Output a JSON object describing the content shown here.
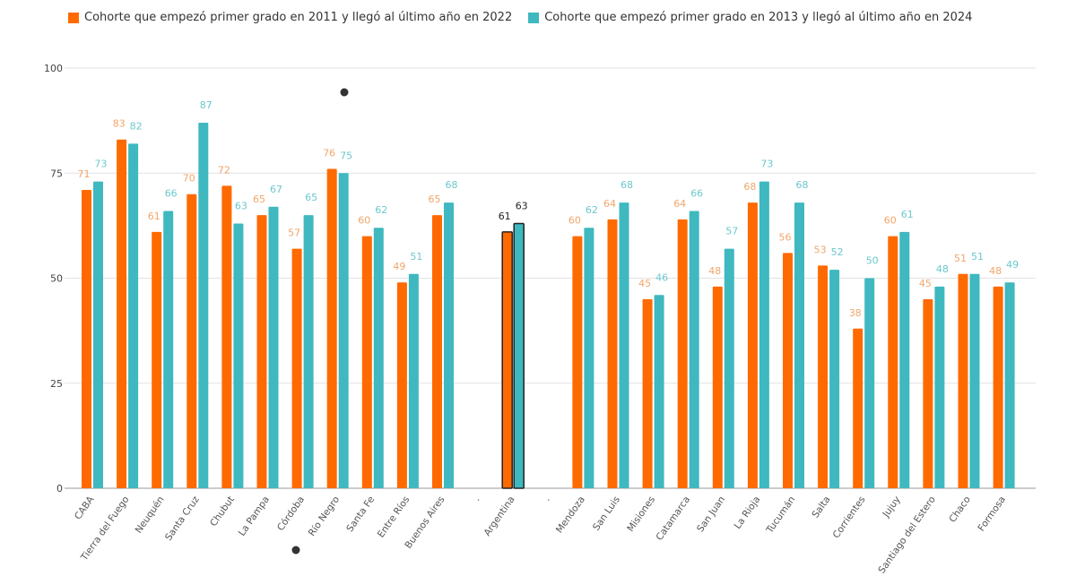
{
  "chart_data": {
    "type": "bar",
    "title": "",
    "xlabel": "",
    "ylabel": "",
    "ylim": [
      0,
      100
    ],
    "yticks": [
      0,
      25,
      50,
      75,
      100
    ],
    "grid": true,
    "legend_position": "top",
    "categories": [
      "CABA",
      "Tierra del Fuego",
      "Neuquén",
      "Santa Cruz",
      "Chubut",
      "La Pampa",
      "Córdoba",
      "Río Negro",
      "Santa Fe",
      "Entre Ríos",
      "Buenos Aires",
      ".",
      "Argentina",
      ".",
      "Mendoza",
      "San Luis",
      "Misiones",
      "Catamarca",
      "San Juan",
      "La Rioja",
      "Tucumán",
      "Salta",
      "Corrientes",
      "Jujuy",
      "Santiago del Estero",
      "Chaco",
      "Formosa"
    ],
    "highlight_category": "Argentina",
    "series": [
      {
        "name": "Cohorte que empezó primer grado en 2011 y llegó al último año en 2022",
        "color": "#ff6a00",
        "label_color": "#f0a66a",
        "values": [
          71,
          83,
          61,
          70,
          72,
          65,
          57,
          76,
          60,
          49,
          65,
          null,
          61,
          null,
          60,
          64,
          45,
          64,
          48,
          68,
          56,
          53,
          38,
          60,
          45,
          51,
          48
        ]
      },
      {
        "name": "Cohorte que empezó primer grado en 2013 y llegó al último año en 2024",
        "color": "#3fb8c0",
        "label_color": "#6cc8cd",
        "values": [
          73,
          82,
          66,
          87,
          63,
          67,
          65,
          75,
          62,
          51,
          68,
          null,
          63,
          null,
          62,
          68,
          46,
          66,
          57,
          73,
          68,
          52,
          50,
          61,
          48,
          51,
          49
        ]
      }
    ]
  }
}
